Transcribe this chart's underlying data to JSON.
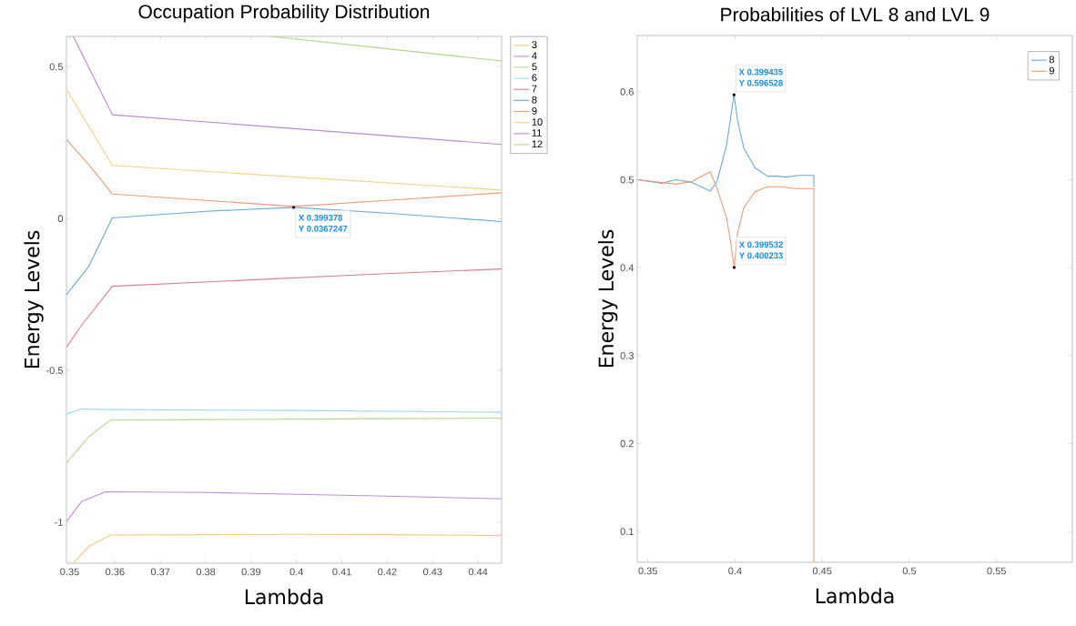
{
  "chart_data": [
    {
      "type": "line",
      "title": "Occupation Probability Distribution",
      "xlabel": "Lambda",
      "ylabel": "Energy Levels",
      "xlim": [
        0.3493,
        0.4452
      ],
      "ylim": [
        -1.135,
        0.6
      ],
      "xticks": [
        0.35,
        0.36,
        0.37,
        0.38,
        0.39,
        0.4,
        0.41,
        0.42,
        0.43,
        0.44
      ],
      "yticks": [
        -1,
        -0.5,
        0,
        0.5
      ],
      "legend": "right",
      "grid": false,
      "marker": "none",
      "line_style": "solid",
      "series": [
        {
          "name": "3",
          "color": "#f2cc78",
          "x": [
            0.3508,
            0.3543,
            0.359,
            0.38,
            0.4,
            0.42,
            0.4452
          ],
          "values": [
            -1.135,
            -1.079,
            -1.042,
            -1.041,
            -1.04,
            -1.041,
            -1.044
          ]
        },
        {
          "name": "4",
          "color": "#bf8fd6",
          "x": [
            0.3493,
            0.3527,
            0.3579,
            0.38,
            0.4,
            0.42,
            0.4452
          ],
          "values": [
            -0.998,
            -0.931,
            -0.9,
            -0.902,
            -0.908,
            -0.914,
            -0.923
          ]
        },
        {
          "name": "5",
          "color": "#b5d58f",
          "x": [
            0.3493,
            0.3543,
            0.359,
            0.38,
            0.42,
            0.4452
          ],
          "values": [
            -0.805,
            -0.717,
            -0.664,
            -0.662,
            -0.659,
            -0.657
          ]
        },
        {
          "name": "6",
          "color": "#9ed8f0",
          "x": [
            0.3493,
            0.3526,
            0.359,
            0.4,
            0.4452
          ],
          "values": [
            -0.644,
            -0.627,
            -0.629,
            -0.632,
            -0.638
          ]
        },
        {
          "name": "7",
          "color": "#d8808e",
          "x": [
            0.3493,
            0.3527,
            0.3594,
            0.4173,
            0.4452
          ],
          "values": [
            -0.424,
            -0.35,
            -0.223,
            -0.183,
            -0.166
          ]
        },
        {
          "name": "8",
          "color": "#6aaad8",
          "x": [
            0.3493,
            0.3542,
            0.3594,
            0.38,
            0.3994,
            0.42,
            0.4452
          ],
          "values": [
            -0.251,
            -0.158,
            0.002,
            0.024,
            0.037,
            0.018,
            -0.01
          ]
        },
        {
          "name": "9",
          "color": "#ee9c7a",
          "x": [
            0.3493,
            0.3542,
            0.3594,
            0.38,
            0.3994,
            0.42,
            0.4452
          ],
          "values": [
            0.26,
            0.178,
            0.081,
            0.06,
            0.04,
            0.06,
            0.085
          ]
        },
        {
          "name": "10",
          "color": "#f3d28a",
          "x": [
            0.3493,
            0.3594,
            0.4452
          ],
          "values": [
            0.426,
            0.175,
            0.094
          ]
        },
        {
          "name": "11",
          "color": "#b98ad2",
          "x": [
            0.3508,
            0.3594,
            0.4452
          ],
          "values": [
            0.6,
            0.342,
            0.244
          ]
        },
        {
          "name": "12",
          "color": "#b2d28e",
          "x": [
            0.3944,
            0.4452
          ],
          "values": [
            0.6,
            0.519
          ]
        }
      ],
      "annotations": [
        {
          "text": "X 0.399378",
          "x": 0.399378,
          "y": 0.0367247
        },
        {
          "text": "Y 0.0367247",
          "x": 0.399378,
          "y": 0.0367247
        }
      ]
    },
    {
      "type": "line",
      "title": "Probabilities of LVL 8 and LVL 9",
      "xlabel": "Lambda",
      "ylabel": "Energy Levels",
      "xlim": [
        0.3439,
        0.5935
      ],
      "ylim": [
        0.065,
        0.664
      ],
      "xticks": [
        0.35,
        0.4,
        0.45,
        0.5,
        0.55
      ],
      "yticks": [
        0.1,
        0.2,
        0.3,
        0.4,
        0.5,
        0.6
      ],
      "legend": "top right",
      "grid": false,
      "marker": "none",
      "line_style": "solid",
      "series": [
        {
          "name": "8",
          "color": "#6aaad8",
          "x": [
            0.3439,
            0.3581,
            0.3662,
            0.3752,
            0.3857,
            0.3897,
            0.3951,
            0.3978,
            0.399435,
            0.4014,
            0.405,
            0.4113,
            0.4185,
            0.424,
            0.4293,
            0.4366,
            0.4452,
            0.4452
          ],
          "values": [
            0.5,
            0.496,
            0.5,
            0.497,
            0.487,
            0.498,
            0.539,
            0.575,
            0.597,
            0.568,
            0.536,
            0.514,
            0.504,
            0.504,
            0.503,
            0.505,
            0.505,
            0.492
          ]
        },
        {
          "name": "9",
          "color": "#ef9a78",
          "x": [
            0.3439,
            0.3662,
            0.3752,
            0.3857,
            0.3897,
            0.3951,
            0.3978,
            0.399532,
            0.4014,
            0.405,
            0.4113,
            0.4185,
            0.4257,
            0.4348,
            0.4452,
            0.4452
          ],
          "values": [
            0.5,
            0.495,
            0.498,
            0.509,
            0.49,
            0.457,
            0.425,
            0.4,
            0.439,
            0.468,
            0.486,
            0.492,
            0.492,
            0.49,
            0.49,
            0.065
          ]
        }
      ],
      "annotations": [
        {
          "text": "X 0.399435",
          "x": 0.399435,
          "y": 0.596528
        },
        {
          "text": "Y 0.596528",
          "x": 0.399435,
          "y": 0.596528
        },
        {
          "text": "X 0.399532",
          "x": 0.399532,
          "y": 0.400233
        },
        {
          "text": "Y 0.400233",
          "x": 0.399532,
          "y": 0.400233
        }
      ]
    }
  ]
}
